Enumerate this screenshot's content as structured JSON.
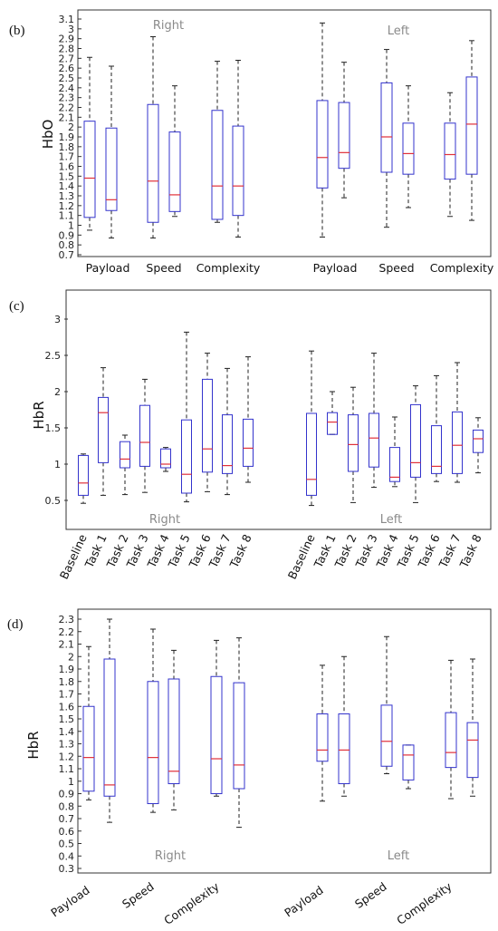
{
  "chart_data": [
    {
      "panel_label": "(b)",
      "type": "box",
      "ylabel": "HbO",
      "ylim": [
        0.7,
        3.1
      ],
      "yticks": [
        "3.1",
        "3",
        "2.9",
        "2.8",
        "2.7",
        "2.6",
        "2.5",
        "2.4",
        "2.3",
        "2.2",
        "2.1",
        "2",
        "1.9",
        "1.8",
        "1.7",
        "1.6",
        "1.5",
        "1.4",
        "1.3",
        "1.2",
        "1.1",
        "1",
        "0.9",
        "0.8",
        "0.7"
      ],
      "group_labels": [
        "Right",
        "Left"
      ],
      "category_labels": [
        "Payload",
        "Speed",
        "Complexity",
        "Payload",
        "Speed",
        "Complexity"
      ],
      "boxes": [
        {
          "min": 0.95,
          "q1": 1.08,
          "median": 1.48,
          "q3": 2.06,
          "max": 2.71
        },
        {
          "min": 0.87,
          "q1": 1.15,
          "median": 1.26,
          "q3": 1.99,
          "max": 2.62
        },
        {
          "min": 0.87,
          "q1": 1.03,
          "median": 1.45,
          "q3": 2.23,
          "max": 2.92
        },
        {
          "min": 1.09,
          "q1": 1.14,
          "median": 1.31,
          "q3": 1.95,
          "max": 2.42
        },
        {
          "min": 1.03,
          "q1": 1.06,
          "median": 1.4,
          "q3": 2.17,
          "max": 2.67
        },
        {
          "min": 0.88,
          "q1": 1.1,
          "median": 1.4,
          "q3": 2.01,
          "max": 2.68
        },
        {
          "min": 0.88,
          "q1": 1.38,
          "median": 1.69,
          "q3": 2.27,
          "max": 3.06
        },
        {
          "min": 1.28,
          "q1": 1.58,
          "median": 1.74,
          "q3": 2.25,
          "max": 2.66
        },
        {
          "min": 0.98,
          "q1": 1.54,
          "median": 1.9,
          "q3": 2.45,
          "max": 2.79
        },
        {
          "min": 1.18,
          "q1": 1.52,
          "median": 1.73,
          "q3": 2.04,
          "max": 2.42
        },
        {
          "min": 1.09,
          "q1": 1.47,
          "median": 1.72,
          "q3": 2.04,
          "max": 2.35
        },
        {
          "min": 1.05,
          "q1": 1.52,
          "median": 2.03,
          "q3": 2.51,
          "max": 2.88
        }
      ]
    },
    {
      "panel_label": "(c)",
      "type": "box",
      "ylabel": "HbR",
      "ylim": [
        0.35,
        3.3
      ],
      "yticks": [
        "3",
        "2.5",
        "2",
        "1.5",
        "1",
        "0.5"
      ],
      "group_labels": [
        "Right",
        "Left"
      ],
      "category_labels": [
        "Baseline",
        "Task 1",
        "Task 2",
        "Task 3",
        "Task 4",
        "Task 5",
        "Task 6",
        "Task 7",
        "Task 8",
        "Baseline",
        "Task 1",
        "Task 2",
        "Task 3",
        "Task 4",
        "Task 5",
        "Task 6",
        "Task 7",
        "Task 8"
      ],
      "boxes": [
        {
          "min": 0.46,
          "q1": 0.57,
          "median": 0.74,
          "q3": 1.12,
          "max": 1.14
        },
        {
          "min": 0.57,
          "q1": 1.02,
          "median": 1.71,
          "q3": 1.92,
          "max": 2.33
        },
        {
          "min": 0.58,
          "q1": 0.95,
          "median": 1.07,
          "q3": 1.31,
          "max": 1.4
        },
        {
          "min": 0.61,
          "q1": 0.97,
          "median": 1.3,
          "q3": 1.81,
          "max": 2.17
        },
        {
          "min": 0.9,
          "q1": 0.95,
          "median": 1.0,
          "q3": 1.21,
          "max": 1.23
        },
        {
          "min": 0.48,
          "q1": 0.6,
          "median": 0.86,
          "q3": 1.61,
          "max": 2.82
        },
        {
          "min": 0.62,
          "q1": 0.89,
          "median": 1.21,
          "q3": 2.17,
          "max": 2.53
        },
        {
          "min": 0.58,
          "q1": 0.87,
          "median": 0.98,
          "q3": 1.68,
          "max": 2.32
        },
        {
          "min": 0.75,
          "q1": 0.97,
          "median": 1.22,
          "q3": 1.62,
          "max": 2.48
        },
        {
          "min": 0.43,
          "q1": 0.57,
          "median": 0.79,
          "q3": 1.7,
          "max": 2.56
        },
        {
          "min": 1.41,
          "q1": 1.41,
          "median": 1.58,
          "q3": 1.71,
          "max": 2.0
        },
        {
          "min": 0.47,
          "q1": 0.9,
          "median": 1.27,
          "q3": 1.68,
          "max": 2.06
        },
        {
          "min": 0.68,
          "q1": 0.96,
          "median": 1.36,
          "q3": 1.7,
          "max": 2.53
        },
        {
          "min": 0.69,
          "q1": 0.76,
          "median": 0.82,
          "q3": 1.23,
          "max": 1.65
        },
        {
          "min": 0.47,
          "q1": 0.82,
          "median": 1.02,
          "q3": 1.82,
          "max": 2.08
        },
        {
          "min": 0.76,
          "q1": 0.87,
          "median": 0.97,
          "q3": 1.53,
          "max": 2.22
        },
        {
          "min": 0.75,
          "q1": 0.87,
          "median": 1.26,
          "q3": 1.72,
          "max": 2.4
        },
        {
          "min": 0.88,
          "q1": 1.16,
          "median": 1.35,
          "q3": 1.47,
          "max": 1.64
        }
      ]
    },
    {
      "panel_label": "(d)",
      "type": "box",
      "ylabel": "HbR",
      "ylim": [
        0.3,
        2.35
      ],
      "yticks": [
        "2.3",
        "2.2",
        "2.1",
        "2",
        "1.9",
        "1.8",
        "1.7",
        "1.6",
        "1.5",
        "1.4",
        "1.3",
        "1.2",
        "1.1",
        "1",
        "0.9",
        "0.8",
        "0.7",
        "0.6",
        "0.5",
        "0.4",
        "0.3"
      ],
      "group_labels": [
        "Right",
        "Left"
      ],
      "category_labels": [
        "Payload",
        "Speed",
        "Complexity",
        "Payload",
        "Speed",
        "Complexity"
      ],
      "boxes": [
        {
          "min": 0.85,
          "q1": 0.92,
          "median": 1.19,
          "q3": 1.6,
          "max": 2.08
        },
        {
          "min": 0.67,
          "q1": 0.88,
          "median": 0.97,
          "q3": 1.98,
          "max": 2.3
        },
        {
          "min": 0.75,
          "q1": 0.82,
          "median": 1.19,
          "q3": 1.8,
          "max": 2.22
        },
        {
          "min": 0.77,
          "q1": 0.98,
          "median": 1.08,
          "q3": 1.82,
          "max": 2.05
        },
        {
          "min": 0.88,
          "q1": 0.9,
          "median": 1.18,
          "q3": 1.84,
          "max": 2.13
        },
        {
          "min": 0.63,
          "q1": 0.94,
          "median": 1.13,
          "q3": 1.79,
          "max": 2.15
        },
        {
          "min": 0.84,
          "q1": 1.16,
          "median": 1.25,
          "q3": 1.54,
          "max": 1.93
        },
        {
          "min": 0.88,
          "q1": 0.98,
          "median": 1.25,
          "q3": 1.54,
          "max": 2.0
        },
        {
          "min": 1.06,
          "q1": 1.12,
          "median": 1.32,
          "q3": 1.61,
          "max": 2.16
        },
        {
          "min": 0.94,
          "q1": 1.01,
          "median": 1.21,
          "q3": 1.29,
          "max": 1.29
        },
        {
          "min": 0.86,
          "q1": 1.11,
          "median": 1.23,
          "q3": 1.55,
          "max": 1.97
        },
        {
          "min": 0.88,
          "q1": 1.03,
          "median": 1.33,
          "q3": 1.47,
          "max": 1.98
        }
      ]
    }
  ],
  "colors": {
    "box": "#3333cc",
    "median": "#e0303a",
    "whisker": "#222222",
    "side_label": "#8a8a8a"
  }
}
